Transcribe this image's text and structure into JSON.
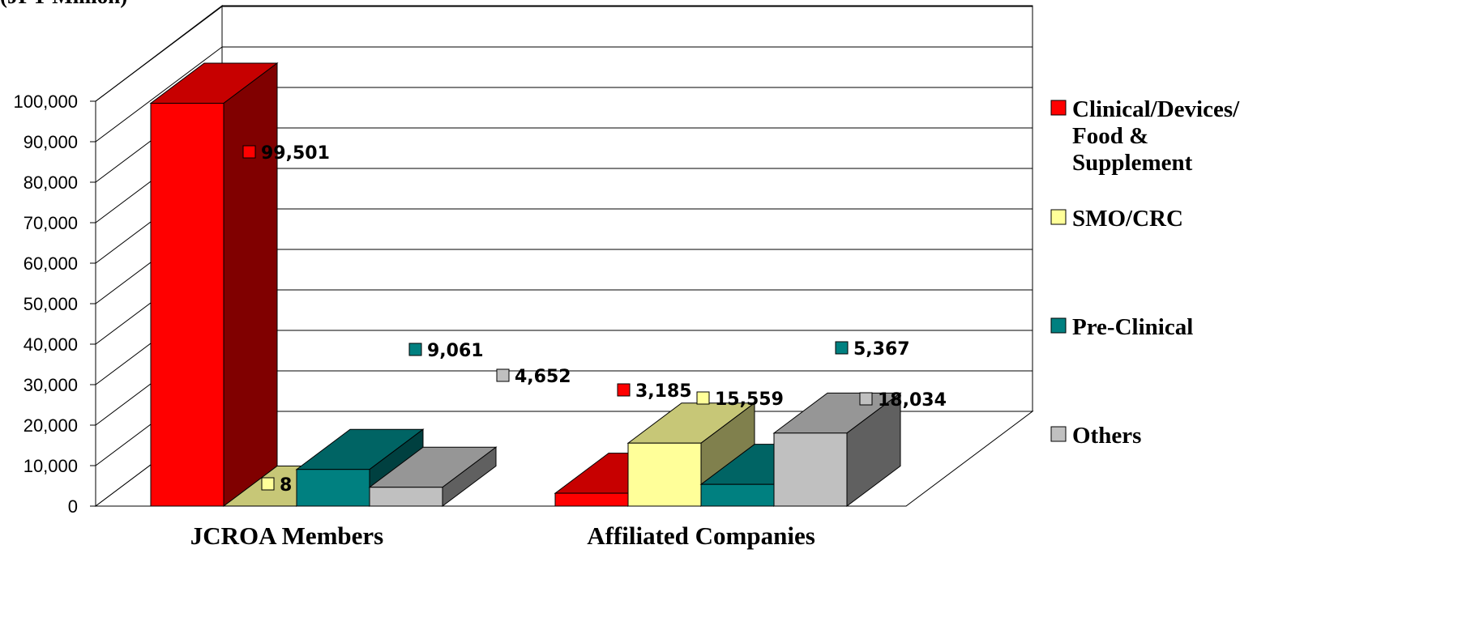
{
  "chart_data": {
    "type": "bar",
    "unit_label": "(JPY Million)",
    "categories": [
      "JCROA Members",
      "Affiliated Companies"
    ],
    "series": [
      {
        "name": "Clinical/Devices/ Food & Supplement",
        "legend_lines": [
          "Clinical/Devices/",
          "Food &",
          "Supplement"
        ],
        "color": "#ff0000",
        "values": [
          99501,
          3185
        ],
        "value_labels": [
          "99,501",
          "3,185"
        ]
      },
      {
        "name": "SMO/CRC",
        "legend_lines": [
          "SMO/CRC"
        ],
        "color": "#ffff99",
        "values": [
          8,
          15559
        ],
        "value_labels": [
          "8",
          "15,559"
        ]
      },
      {
        "name": "Pre-Clinical",
        "legend_lines": [
          "Pre-Clinical"
        ],
        "color": "#008080",
        "values": [
          9061,
          5367
        ],
        "value_labels": [
          "9,061",
          "5,367"
        ]
      },
      {
        "name": "Others",
        "legend_lines": [
          "Others"
        ],
        "color": "#c0c0c0",
        "values": [
          4652,
          18034
        ],
        "value_labels": [
          "4,652",
          "18,034"
        ]
      }
    ],
    "ylim": [
      0,
      100000
    ],
    "yticks": [
      0,
      10000,
      20000,
      30000,
      40000,
      50000,
      60000,
      70000,
      80000,
      90000,
      100000
    ],
    "ytick_labels": [
      "0",
      "10,000",
      "20,000",
      "30,000",
      "40,000",
      "50,000",
      "60,000",
      "70,000",
      "80,000",
      "90,000",
      "100,000"
    ],
    "grid": true,
    "legend_position": "right",
    "style": "3d-clustered-column"
  }
}
